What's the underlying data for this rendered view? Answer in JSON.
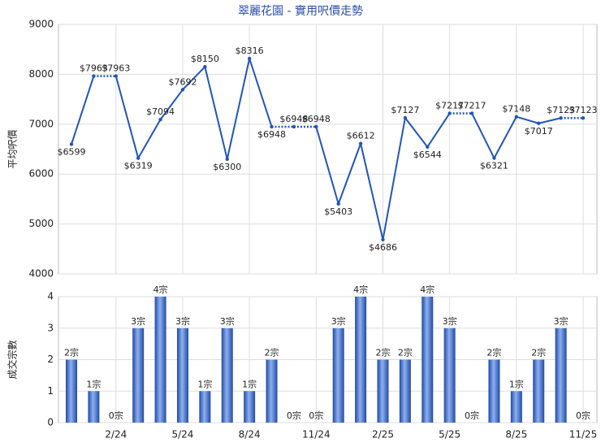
{
  "chart_data": {
    "title": "翠麗花園 - 實用呎價走勢",
    "categories": [
      null,
      null,
      "2/24",
      null,
      null,
      "5/24",
      null,
      null,
      "8/24",
      null,
      null,
      "11/24",
      null,
      null,
      "2/25",
      null,
      null,
      "5/25",
      null,
      null,
      "8/25",
      null,
      null,
      "11/25"
    ],
    "grid": true,
    "panels": [
      {
        "type": "line",
        "ylabel": "平均呎價",
        "color": "#2255bb",
        "ylim": [
          4000,
          9000
        ],
        "yticks": [
          4000,
          5000,
          6000,
          7000,
          8000,
          9000
        ],
        "values": [
          6599,
          7963,
          7963,
          6319,
          7094,
          7692,
          8150,
          6300,
          8316,
          6948,
          6948,
          6948,
          5403,
          6612,
          4686,
          7127,
          6544,
          7217,
          7217,
          6321,
          7148,
          7017,
          7123,
          7123
        ],
        "value_labels": [
          "$6599",
          "$7963",
          "$7963",
          "$6319",
          "$7094",
          "$7692",
          "$8150",
          "$6300",
          "$8316",
          "$6948",
          "$6948",
          "$6948",
          "$5403",
          "$6612",
          "$4686",
          "$7127",
          "$6544",
          "$7217",
          "$7217",
          "$6321",
          "$7148",
          "$7017",
          "$7123",
          "$7123"
        ]
      },
      {
        "type": "bar",
        "ylabel": "成交宗數",
        "color": "#3366cc",
        "ylim": [
          0,
          4
        ],
        "yticks": [
          0,
          1,
          2,
          3,
          4
        ],
        "values": [
          2,
          1,
          0,
          3,
          4,
          3,
          1,
          3,
          1,
          2,
          0,
          0,
          3,
          4,
          2,
          2,
          4,
          3,
          0,
          2,
          1,
          2,
          3,
          0
        ],
        "value_labels": [
          "2宗",
          "1宗",
          "0宗",
          "3宗",
          "4宗",
          "3宗",
          "1宗",
          "3宗",
          "1宗",
          "2宗",
          "0宗",
          "0宗",
          "3宗",
          "4宗",
          "2宗",
          "2宗",
          "4宗",
          "3宗",
          "0宗",
          "2宗",
          "1宗",
          "2宗",
          "3宗",
          "0宗"
        ]
      }
    ]
  }
}
